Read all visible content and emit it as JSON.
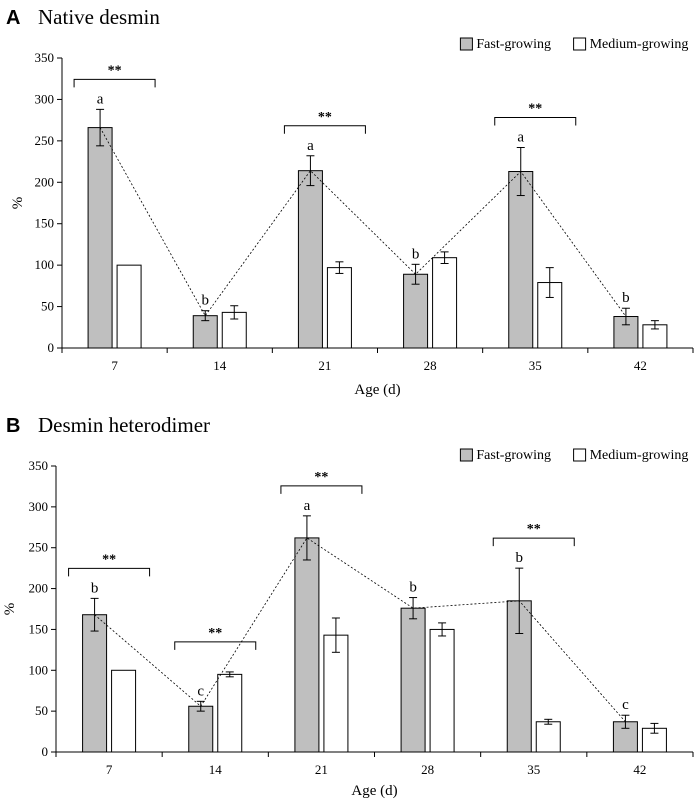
{
  "chart_data": [
    {
      "type": "bar",
      "panel_letter": "A",
      "title": "Native desmin",
      "xlabel": "Age (d)",
      "ylabel": "%",
      "ylim": [
        0,
        350
      ],
      "yticks": [
        "0",
        "50",
        "100",
        "150",
        "200",
        "250",
        "300",
        "350"
      ],
      "categories": [
        "7",
        "14",
        "21",
        "28",
        "35",
        "42"
      ],
      "series": [
        {
          "name": "Fast-growing",
          "color": "#bfbfbf",
          "values": [
            266,
            39,
            214,
            89,
            213,
            38
          ],
          "errors": [
            22,
            6,
            18,
            12,
            29,
            10
          ]
        },
        {
          "name": "Medium-growing",
          "color": "#ffffff",
          "values": [
            100,
            43,
            97,
            109,
            79,
            28
          ],
          "errors": [
            0,
            8,
            7,
            7,
            18,
            5
          ]
        }
      ],
      "letters": [
        "a",
        "b",
        "a",
        "b",
        "a",
        "b"
      ],
      "significance": [
        {
          "category": "7",
          "label": "**"
        },
        {
          "category": "21",
          "label": "**"
        },
        {
          "category": "35",
          "label": "**"
        }
      ],
      "legend": "top-right"
    },
    {
      "type": "bar",
      "panel_letter": "B",
      "title": "Desmin heterodimer",
      "xlabel": "Age (d)",
      "ylabel": "%",
      "ylim": [
        0,
        350
      ],
      "yticks": [
        "0",
        "50",
        "100",
        "150",
        "200",
        "250",
        "300",
        "350"
      ],
      "categories": [
        "7",
        "14",
        "21",
        "28",
        "35",
        "42"
      ],
      "series": [
        {
          "name": "Fast-growing",
          "color": "#bfbfbf",
          "values": [
            168,
            56,
            262,
            176,
            185,
            37
          ],
          "errors": [
            20,
            6,
            27,
            13,
            40,
            8
          ]
        },
        {
          "name": "Medium-growing",
          "color": "#ffffff",
          "values": [
            100,
            95,
            143,
            150,
            37,
            29
          ],
          "errors": [
            0,
            3,
            21,
            8,
            3,
            6
          ]
        }
      ],
      "letters": [
        "b",
        "c",
        "a",
        "b",
        "b",
        "c"
      ],
      "significance": [
        {
          "category": "7",
          "label": "**"
        },
        {
          "category": "14",
          "label": "**"
        },
        {
          "category": "21",
          "label": "**"
        },
        {
          "category": "35",
          "label": "**"
        }
      ],
      "legend": "top-right"
    }
  ]
}
